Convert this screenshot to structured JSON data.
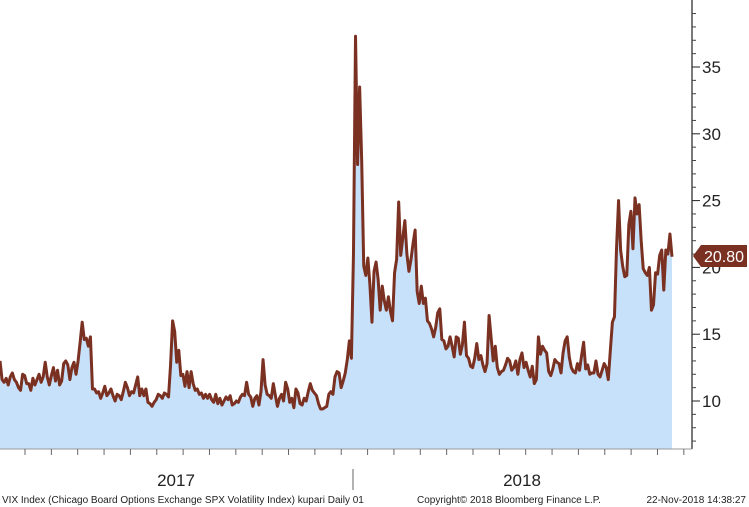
{
  "chart_data": {
    "type": "area",
    "title": "",
    "xlabel": "",
    "ylabel": "",
    "ylim": [
      6.5,
      40
    ],
    "y_ticks": [
      "10",
      "15",
      "20",
      "25",
      "30",
      "35"
    ],
    "x_labels": [
      "2017",
      "2018"
    ],
    "last_value_label": "20.80",
    "colors": {
      "line": "#7a3121",
      "fill": "#c8e1fb",
      "label_bg": "#7a3121"
    },
    "series": [
      {
        "values": [
          13.0,
          11.6,
          11.4,
          11.7,
          11.2,
          11.8,
          12.1,
          11.6,
          11.4,
          11.0,
          10.8,
          12.0,
          11.9,
          11.3,
          11.3,
          10.8,
          11.7,
          11.2,
          11.6,
          12.0,
          11.4,
          11.8,
          12.9,
          11.8,
          11.2,
          11.9,
          12.5,
          11.5,
          12.3,
          11.2,
          11.5,
          12.8,
          13.0,
          12.7,
          11.6,
          12.5,
          12.9,
          12.0,
          13.0,
          14.4,
          15.9,
          14.6,
          14.7,
          14.1,
          14.8,
          10.9,
          10.9,
          10.6,
          10.7,
          10.2,
          10.6,
          11.1,
          10.4,
          10.6,
          10.9,
          10.4,
          10.0,
          10.5,
          10.4,
          10.1,
          10.7,
          11.4,
          11.0,
          10.4,
          10.7,
          10.6,
          11.2,
          11.8,
          10.4,
          10.9,
          10.4,
          10.9,
          9.9,
          9.8,
          9.6,
          9.9,
          10.1,
          10.5,
          10.4,
          10.2,
          10.6,
          10.5,
          10.3,
          12.7,
          16.0,
          15.2,
          12.9,
          13.8,
          11.9,
          12.0,
          11.1,
          12.2,
          11.0,
          12.2,
          11.3,
          10.8,
          10.9,
          10.5,
          10.6,
          10.2,
          10.5,
          10.2,
          10.5,
          10.1,
          9.9,
          10.5,
          9.8,
          10.2,
          9.7,
          10.0,
          10.3,
          10.1,
          10.4,
          9.7,
          9.8,
          10.0,
          9.9,
          10.3,
          10.5,
          10.4,
          11.4,
          10.5,
          10.3,
          9.6,
          10.2,
          10.4,
          9.7,
          10.7,
          13.1,
          11.2,
          10.5,
          10.4,
          10.2,
          11.3,
          10.4,
          9.6,
          10.2,
          10.5,
          10.0,
          11.4,
          10.9,
          9.9,
          10.2,
          9.5,
          10.9,
          10.6,
          9.8,
          9.7,
          10.2,
          10.0,
          10.7,
          11.3,
          10.8,
          10.6,
          10.4,
          9.8,
          9.4,
          9.4,
          9.5,
          9.6,
          10.5,
          10.7,
          10.5,
          11.8,
          12.2,
          12.1,
          11.0,
          11.5,
          12.1,
          13.1,
          14.5,
          13.2,
          21.0,
          37.3,
          27.7,
          33.5,
          28.0,
          20.1,
          19.4,
          20.7,
          18.7,
          15.9,
          19.7,
          20.4,
          19.1,
          16.8,
          18.6,
          17.5,
          16.8,
          17.8,
          16.7,
          16.0,
          19.6,
          20.6,
          24.9,
          20.9,
          22.2,
          23.5,
          21.0,
          19.7,
          20.6,
          21.8,
          22.8,
          18.2,
          17.3,
          18.6,
          17.3,
          17.7,
          16.0,
          15.8,
          15.4,
          14.8,
          15.5,
          16.6,
          16.9,
          14.6,
          14.5,
          13.9,
          14.1,
          14.8,
          14.1,
          13.3,
          14.8,
          14.7,
          13.5,
          14.2,
          15.9,
          13.4,
          13.2,
          12.6,
          12.5,
          13.2,
          14.3,
          13.1,
          13.4,
          12.7,
          12.2,
          12.8,
          16.4,
          14.7,
          13.0,
          14.1,
          12.5,
          12.0,
          12.2,
          12.3,
          12.7,
          13.2,
          13.0,
          12.3,
          12.5,
          13.0,
          12.0,
          13.1,
          13.6,
          12.5,
          12.9,
          12.3,
          11.8,
          12.6,
          11.3,
          11.6,
          14.8,
          13.5,
          14.1,
          13.8,
          13.6,
          12.2,
          11.9,
          12.4,
          13.1,
          12.9,
          12.8,
          12.1,
          13.6,
          14.5,
          14.8,
          13.3,
          12.5,
          12.2,
          12.1,
          12.8,
          12.3,
          13.4,
          14.4,
          12.4,
          12.7,
          12.0,
          12.1,
          12.1,
          13.0,
          12.0,
          11.8,
          12.3,
          12.8,
          12.5,
          11.6,
          13.8,
          15.9,
          16.3,
          21.4,
          25.0,
          21.3,
          20.1,
          19.3,
          19.4,
          23.2,
          24.2,
          21.4,
          25.2,
          24.0,
          24.7,
          22.0,
          19.9,
          19.6,
          19.4,
          20.0,
          16.8,
          17.2,
          19.6,
          19.5,
          20.9,
          21.3,
          18.3,
          21.3,
          21.0,
          22.5,
          20.8
        ]
      }
    ]
  },
  "footer": {
    "left": "VIX Index (Chicago Board Options Exchange SPX Volatility Index) kupari  Daily 01",
    "center": "Copyright© 2018 Bloomberg Finance L.P.",
    "right": "22-Nov-2018 14:38:27"
  }
}
